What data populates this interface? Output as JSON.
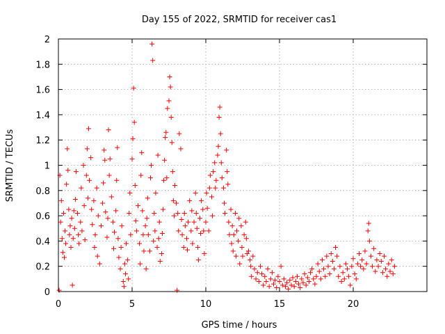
{
  "chart_data": {
    "type": "scatter",
    "title": "Day 155 of 2022, SRMTID for receiver cas1",
    "xlabel": "GPS time / hours",
    "ylabel": "SRMTID / TECUs",
    "xlim": [
      0,
      25
    ],
    "ylim": [
      0,
      2
    ],
    "xticks": [
      0,
      5,
      10,
      15,
      20
    ],
    "xtick_labels": [
      "0",
      "5",
      "10",
      "15",
      "20"
    ],
    "yticks": [
      0,
      0.2,
      0.4,
      0.6,
      0.8,
      1,
      1.2,
      1.4,
      1.6,
      1.8,
      2
    ],
    "ytick_labels": [
      "0",
      "0.2",
      "0.4",
      "0.6",
      "0.8",
      "1",
      "1.2",
      "1.4",
      "1.6",
      "1.8",
      "2"
    ],
    "grid": true,
    "marker": "plus",
    "color": "#ff0000",
    "series": [
      {
        "name": "SRMTID",
        "points": [
          [
            0.05,
            0.01
          ],
          [
            0.1,
            0.92
          ],
          [
            0.15,
            0.55
          ],
          [
            0.2,
            0.72
          ],
          [
            0.25,
            0.42
          ],
          [
            0.3,
            0.31
          ],
          [
            0.35,
            0.62
          ],
          [
            0.4,
            0.27
          ],
          [
            0.45,
            0.48
          ],
          [
            0.5,
            0.38
          ],
          [
            0.55,
            0.85
          ],
          [
            0.6,
            1.13
          ],
          [
            0.65,
            0.96
          ],
          [
            0.7,
            0.65
          ],
          [
            0.75,
            0.45
          ],
          [
            0.8,
            0.52
          ],
          [
            0.85,
            0.35
          ],
          [
            0.9,
            0.58
          ],
          [
            0.95,
            0.05
          ],
          [
            1.0,
            0.42
          ],
          [
            1.05,
            0.64
          ],
          [
            1.1,
            0.5
          ],
          [
            1.15,
            0.73
          ],
          [
            1.2,
            0.95
          ],
          [
            1.3,
            0.62
          ],
          [
            1.35,
            0.45
          ],
          [
            1.4,
            0.38
          ],
          [
            1.5,
            0.55
          ],
          [
            1.55,
            0.82
          ],
          [
            1.6,
            0.48
          ],
          [
            1.7,
            1.0
          ],
          [
            1.75,
            0.68
          ],
          [
            1.8,
            0.41
          ],
          [
            1.9,
            0.92
          ],
          [
            1.95,
            1.13
          ],
          [
            2.0,
            0.74
          ],
          [
            2.05,
            1.29
          ],
          [
            2.1,
            0.88
          ],
          [
            2.2,
            1.06
          ],
          [
            2.25,
            0.65
          ],
          [
            2.3,
            0.53
          ],
          [
            2.4,
            0.72
          ],
          [
            2.45,
            0.35
          ],
          [
            2.5,
            0.45
          ],
          [
            2.6,
            0.82
          ],
          [
            2.65,
            0.28
          ],
          [
            2.7,
            0.6
          ],
          [
            2.8,
            0.22
          ],
          [
            2.9,
            0.52
          ],
          [
            3.0,
            0.7
          ],
          [
            3.05,
            0.86
          ],
          [
            3.1,
            1.12
          ],
          [
            3.15,
            1.04
          ],
          [
            3.2,
            0.63
          ],
          [
            3.3,
            0.43
          ],
          [
            3.35,
            0.58
          ],
          [
            3.4,
            1.28
          ],
          [
            3.45,
            0.92
          ],
          [
            3.5,
            1.05
          ],
          [
            3.6,
            0.75
          ],
          [
            3.7,
            0.55
          ],
          [
            3.75,
            0.34
          ],
          [
            3.8,
            0.47
          ],
          [
            3.9,
            0.64
          ],
          [
            3.95,
            0.88
          ],
          [
            4.0,
            1.14
          ],
          [
            4.05,
            0.42
          ],
          [
            4.1,
            0.27
          ],
          [
            4.2,
            0.18
          ],
          [
            4.25,
            0.35
          ],
          [
            4.3,
            0.52
          ],
          [
            4.4,
            0.08
          ],
          [
            4.45,
            0.04
          ],
          [
            4.5,
            0.22
          ],
          [
            4.55,
            0.14
          ],
          [
            4.6,
            0.38
          ],
          [
            4.7,
            0.25
          ],
          [
            4.75,
            0.1
          ],
          [
            4.8,
            0.62
          ],
          [
            4.85,
            0.78
          ],
          [
            4.9,
            0.45
          ],
          [
            5.0,
            1.05
          ],
          [
            5.05,
            1.21
          ],
          [
            5.1,
            1.61
          ],
          [
            5.15,
            1.34
          ],
          [
            5.2,
            0.84
          ],
          [
            5.25,
            0.56
          ],
          [
            5.3,
            0.48
          ],
          [
            5.4,
            0.68
          ],
          [
            5.5,
            0.38
          ],
          [
            5.55,
            0.22
          ],
          [
            5.6,
            0.92
          ],
          [
            5.65,
            1.1
          ],
          [
            5.7,
            0.64
          ],
          [
            5.75,
            0.45
          ],
          [
            5.8,
            0.32
          ],
          [
            5.9,
            0.52
          ],
          [
            5.95,
            0.18
          ],
          [
            6.0,
            0.58
          ],
          [
            6.05,
            0.74
          ],
          [
            6.1,
            0.45
          ],
          [
            6.2,
            0.32
          ],
          [
            6.25,
            0.9
          ],
          [
            6.3,
            1.0
          ],
          [
            6.35,
            1.96
          ],
          [
            6.4,
            1.83
          ],
          [
            6.45,
            0.4
          ],
          [
            6.5,
            0.62
          ],
          [
            6.55,
            0.48
          ],
          [
            6.6,
            0.78
          ],
          [
            6.7,
            0.35
          ],
          [
            6.75,
            1.08
          ],
          [
            6.8,
            0.42
          ],
          [
            6.85,
            0.55
          ],
          [
            6.9,
            0.24
          ],
          [
            7.0,
            0.3
          ],
          [
            7.05,
            0.46
          ],
          [
            7.1,
            0.65
          ],
          [
            7.15,
            0.88
          ],
          [
            7.2,
            1.04
          ],
          [
            7.25,
            1.22
          ],
          [
            7.3,
            1.26
          ],
          [
            7.35,
            0.9
          ],
          [
            7.4,
            1.45
          ],
          [
            7.5,
            1.51
          ],
          [
            7.55,
            1.7
          ],
          [
            7.6,
            1.62
          ],
          [
            7.65,
            1.38
          ],
          [
            7.7,
            1.18
          ],
          [
            7.75,
            0.95
          ],
          [
            7.8,
            0.72
          ],
          [
            7.85,
            0.6
          ],
          [
            7.9,
            0.84
          ],
          [
            8.0,
            0.7
          ],
          [
            8.05,
            0.01
          ],
          [
            8.1,
            0.62
          ],
          [
            8.15,
            0.48
          ],
          [
            8.2,
            1.25
          ],
          [
            8.3,
            1.13
          ],
          [
            8.35,
            0.57
          ],
          [
            8.4,
            0.45
          ],
          [
            8.5,
            0.35
          ],
          [
            8.55,
            0.62
          ],
          [
            8.6,
            0.52
          ],
          [
            8.7,
            0.42
          ],
          [
            8.75,
            0.33
          ],
          [
            8.8,
            0.55
          ],
          [
            8.9,
            0.72
          ],
          [
            9.0,
            0.48
          ],
          [
            9.05,
            0.64
          ],
          [
            9.1,
            0.38
          ],
          [
            9.2,
            0.55
          ],
          [
            9.3,
            0.78
          ],
          [
            9.35,
            0.62
          ],
          [
            9.4,
            0.5
          ],
          [
            9.45,
            0.35
          ],
          [
            9.5,
            0.25
          ],
          [
            9.6,
            0.58
          ],
          [
            9.65,
            0.46
          ],
          [
            9.7,
            0.72
          ],
          [
            9.8,
            0.65
          ],
          [
            9.85,
            0.48
          ],
          [
            9.9,
            0.3
          ],
          [
            10.0,
            0.55
          ],
          [
            10.05,
            0.78
          ],
          [
            10.1,
            0.66
          ],
          [
            10.2,
            0.48
          ],
          [
            10.25,
            0.82
          ],
          [
            10.3,
            0.92
          ],
          [
            10.4,
            0.75
          ],
          [
            10.45,
            0.6
          ],
          [
            10.5,
            0.95
          ],
          [
            10.6,
            1.02
          ],
          [
            10.65,
            0.82
          ],
          [
            10.7,
            0.88
          ],
          [
            10.8,
            1.08
          ],
          [
            10.85,
            1.15
          ],
          [
            10.9,
            1.38
          ],
          [
            10.95,
            1.46
          ],
          [
            11.0,
            1.25
          ],
          [
            11.05,
            1.02
          ],
          [
            11.1,
            0.9
          ],
          [
            11.2,
            0.82
          ],
          [
            11.25,
            0.7
          ],
          [
            11.3,
            0.62
          ],
          [
            11.4,
            1.12
          ],
          [
            11.45,
            0.95
          ],
          [
            11.5,
            0.85
          ],
          [
            11.55,
            0.55
          ],
          [
            11.6,
            0.45
          ],
          [
            11.7,
            0.65
          ],
          [
            11.75,
            0.38
          ],
          [
            11.8,
            0.52
          ],
          [
            11.85,
            0.32
          ],
          [
            11.9,
            0.45
          ],
          [
            12.0,
            0.62
          ],
          [
            12.05,
            0.28
          ],
          [
            12.1,
            0.48
          ],
          [
            12.2,
            0.4
          ],
          [
            12.25,
            0.58
          ],
          [
            12.3,
            0.22
          ],
          [
            12.4,
            0.52
          ],
          [
            12.45,
            0.35
          ],
          [
            12.5,
            0.28
          ],
          [
            12.6,
            0.45
          ],
          [
            12.7,
            0.55
          ],
          [
            12.75,
            0.42
          ],
          [
            12.8,
            0.3
          ],
          [
            12.9,
            0.32
          ],
          [
            13.0,
            0.25
          ],
          [
            13.05,
            0.2
          ],
          [
            13.1,
            0.12
          ],
          [
            13.2,
            0.28
          ],
          [
            13.3,
            0.18
          ],
          [
            13.4,
            0.1
          ],
          [
            13.5,
            0.15
          ],
          [
            13.6,
            0.08
          ],
          [
            13.7,
            0.2
          ],
          [
            13.8,
            0.14
          ],
          [
            13.9,
            0.05
          ],
          [
            14.0,
            0.12
          ],
          [
            14.1,
            0.08
          ],
          [
            14.2,
            0.18
          ],
          [
            14.3,
            0.04
          ],
          [
            14.4,
            0.1
          ],
          [
            14.5,
            0.15
          ],
          [
            14.6,
            0.06
          ],
          [
            14.7,
            0.09
          ],
          [
            14.8,
            0.03
          ],
          [
            14.9,
            0.12
          ],
          [
            15.0,
            0.08
          ],
          [
            15.1,
            0.2
          ],
          [
            15.2,
            0.05
          ],
          [
            15.3,
            0.1
          ],
          [
            15.4,
            0.04
          ],
          [
            15.5,
            0.07
          ],
          [
            15.6,
            0.02
          ],
          [
            15.7,
            0.09
          ],
          [
            15.8,
            0.05
          ],
          [
            15.9,
            0.11
          ],
          [
            16.0,
            0.04
          ],
          [
            16.1,
            0.08
          ],
          [
            16.2,
            0.12
          ],
          [
            16.3,
            0.06
          ],
          [
            16.4,
            0.03
          ],
          [
            16.5,
            0.1
          ],
          [
            16.6,
            0.07
          ],
          [
            16.7,
            0.14
          ],
          [
            16.8,
            0.05
          ],
          [
            16.9,
            0.11
          ],
          [
            17.0,
            0.08
          ],
          [
            17.1,
            0.15
          ],
          [
            17.2,
            0.18
          ],
          [
            17.3,
            0.1
          ],
          [
            17.4,
            0.06
          ],
          [
            17.5,
            0.12
          ],
          [
            17.6,
            0.22
          ],
          [
            17.7,
            0.16
          ],
          [
            17.8,
            0.1
          ],
          [
            17.9,
            0.25
          ],
          [
            18.0,
            0.18
          ],
          [
            18.1,
            0.12
          ],
          [
            18.2,
            0.28
          ],
          [
            18.3,
            0.2
          ],
          [
            18.4,
            0.14
          ],
          [
            18.5,
            0.3
          ],
          [
            18.6,
            0.24
          ],
          [
            18.7,
            0.18
          ],
          [
            18.8,
            0.35
          ],
          [
            18.9,
            0.28
          ],
          [
            19.0,
            0.12
          ],
          [
            19.1,
            0.2
          ],
          [
            19.2,
            0.08
          ],
          [
            19.3,
            0.15
          ],
          [
            19.4,
            0.1
          ],
          [
            19.5,
            0.22
          ],
          [
            19.6,
            0.18
          ],
          [
            19.7,
            0.12
          ],
          [
            19.8,
            0.05
          ],
          [
            19.9,
            0.2
          ],
          [
            20.0,
            0.26
          ],
          [
            20.1,
            0.14
          ],
          [
            20.2,
            0.1
          ],
          [
            20.3,
            0.22
          ],
          [
            20.4,
            0.3
          ],
          [
            20.5,
            0.2
          ],
          [
            20.6,
            0.25
          ],
          [
            20.7,
            0.18
          ],
          [
            20.8,
            0.32
          ],
          [
            20.9,
            0.22
          ],
          [
            21.0,
            0.48
          ],
          [
            21.05,
            0.54
          ],
          [
            21.1,
            0.4
          ],
          [
            21.2,
            0.28
          ],
          [
            21.3,
            0.2
          ],
          [
            21.4,
            0.34
          ],
          [
            21.5,
            0.16
          ],
          [
            21.6,
            0.25
          ],
          [
            21.7,
            0.2
          ],
          [
            21.8,
            0.3
          ],
          [
            21.9,
            0.24
          ],
          [
            22.0,
            0.15
          ],
          [
            22.1,
            0.28
          ],
          [
            22.2,
            0.18
          ],
          [
            22.3,
            0.12
          ],
          [
            22.4,
            0.22
          ],
          [
            22.5,
            0.16
          ],
          [
            22.6,
            0.25
          ],
          [
            22.7,
            0.14
          ],
          [
            22.8,
            0.2
          ]
        ]
      }
    ]
  }
}
